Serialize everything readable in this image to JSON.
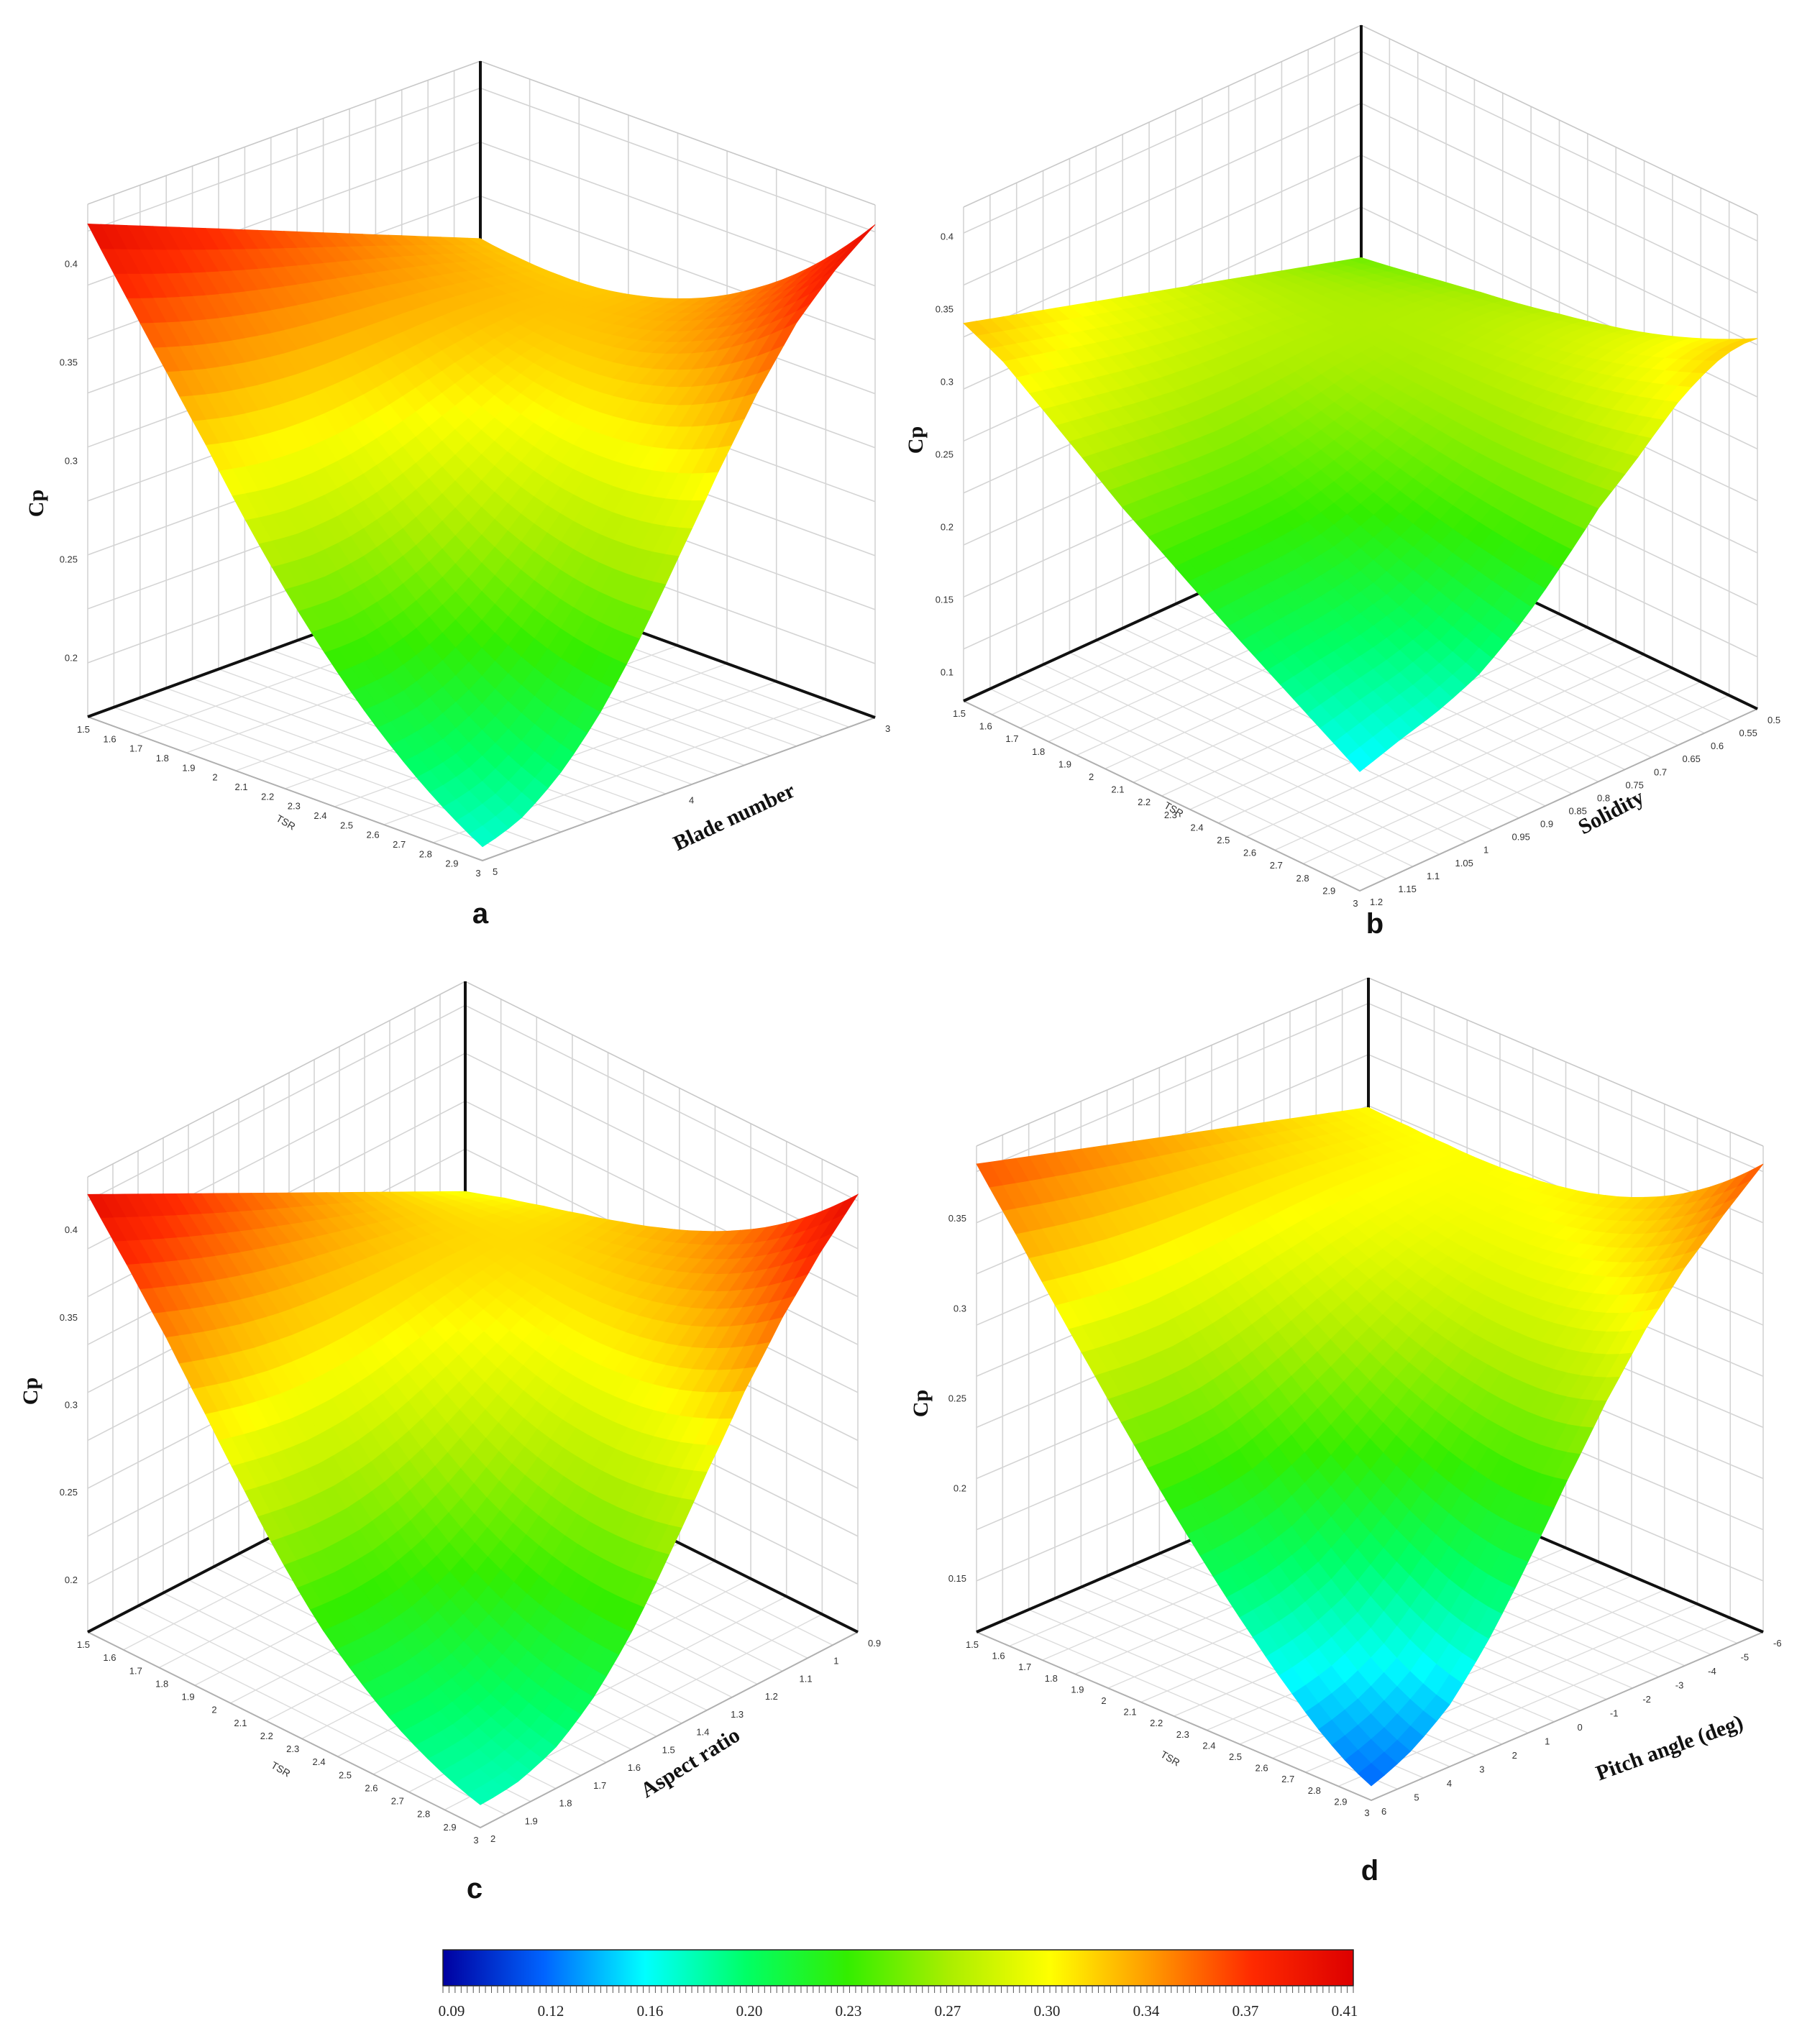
{
  "figure": {
    "colormap": [
      "#0000a0",
      "#0064ff",
      "#00ffff",
      "#00ff66",
      "#33ee00",
      "#aaee00",
      "#ffff00",
      "#ff9900",
      "#ff2a00",
      "#dd0000"
    ],
    "colorbar": {
      "ticks": [
        "0.09",
        "0.12",
        "0.16",
        "0.20",
        "0.23",
        "0.27",
        "0.30",
        "0.34",
        "0.37",
        "0.41"
      ],
      "range": [
        0.09,
        0.43
      ]
    }
  },
  "chart_data": [
    {
      "type": "surface",
      "panel_letter": "a",
      "zlabel": "Cp",
      "xlabel": "TSR",
      "ylabel": "Blade number",
      "x_ticks": [
        "1.5",
        "1.6",
        "1.7",
        "1.8",
        "1.9",
        "2",
        "2.1",
        "2.2",
        "2.3",
        "2.4",
        "2.5",
        "2.6",
        "2.7",
        "2.8",
        "2.9",
        "3"
      ],
      "y_ticks": [
        "5",
        "4",
        "3"
      ],
      "z_ticks": [
        "0.2",
        "0.25",
        "0.3",
        "0.35",
        "0.4"
      ],
      "xlim": [
        1.5,
        3
      ],
      "ylim": [
        5,
        3
      ],
      "zlim": [
        0.17,
        0.43
      ],
      "profiles": {
        "t": [
          0,
          0.1,
          0.2,
          0.3,
          0.4,
          0.5,
          0.6,
          0.7,
          0.8,
          0.9,
          1.0
        ],
        "near": [
          0.177,
          0.18,
          0.186,
          0.194,
          0.205,
          0.22,
          0.237,
          0.255,
          0.272,
          0.285,
          0.29
        ],
        "far": [
          0.198,
          0.226,
          0.258,
          0.292,
          0.326,
          0.356,
          0.381,
          0.4,
          0.413,
          0.418,
          0.42
        ],
        "back": [
          0.29,
          0.305,
          0.32,
          0.335,
          0.35,
          0.365,
          0.38,
          0.395,
          0.405,
          0.413,
          0.42
        ],
        "end": [
          0.188,
          0.205,
          0.222,
          0.24,
          0.256,
          0.272,
          0.287,
          0.301,
          0.315,
          0.328,
          0.34
        ]
      }
    },
    {
      "type": "surface",
      "panel_letter": "b",
      "zlabel": "Cp",
      "xlabel": "TSR",
      "ylabel": "Solidity",
      "x_ticks": [
        "1.5",
        "1.6",
        "1.7",
        "1.8",
        "1.9",
        "2",
        "2.1",
        "2.2",
        "2.3",
        "2.4",
        "2.5",
        "2.6",
        "2.7",
        "2.8",
        "2.9",
        "3"
      ],
      "y_ticks": [
        "1.2",
        "1.15",
        "1.1",
        "1.05",
        "1",
        "0.95",
        "0.9",
        "0.85",
        "0.8",
        "0.75",
        "0.7",
        "0.65",
        "0.6",
        "0.55",
        "0.5"
      ],
      "z_ticks": [
        "0.1",
        "0.15",
        "0.2",
        "0.25",
        "0.3",
        "0.35",
        "0.4"
      ],
      "xlim": [
        1.5,
        3
      ],
      "ylim": [
        1.2,
        0.5
      ],
      "zlim": [
        0.08,
        0.42
      ],
      "profiles": {
        "t": [
          0,
          0.1,
          0.2,
          0.3,
          0.4,
          0.5,
          0.6,
          0.7,
          0.8,
          0.9,
          1.0
        ],
        "near": [
          0.162,
          0.168,
          0.172,
          0.176,
          0.182,
          0.187,
          0.193,
          0.2,
          0.22,
          0.26,
          0.33
        ],
        "far": [
          0.192,
          0.2,
          0.21,
          0.228,
          0.258,
          0.29,
          0.318,
          0.33,
          0.34,
          0.34,
          0.335
        ],
        "back": [
          0.33,
          0.33,
          0.33,
          0.33,
          0.332,
          0.334,
          0.335,
          0.34,
          0.343,
          0.345,
          0.34
        ],
        "end": [
          0.19,
          0.2,
          0.21,
          0.22,
          0.23,
          0.238,
          0.244,
          0.25,
          0.254,
          0.257,
          0.26
        ]
      }
    },
    {
      "type": "surface",
      "panel_letter": "c",
      "zlabel": "Cp",
      "xlabel": "TSR",
      "ylabel": "Aspect ratio",
      "x_ticks": [
        "1.5",
        "1.6",
        "1.7",
        "1.8",
        "1.9",
        "2",
        "2.1",
        "2.2",
        "2.3",
        "2.4",
        "2.5",
        "2.6",
        "2.7",
        "2.8",
        "2.9",
        "3"
      ],
      "y_ticks": [
        "2",
        "1.9",
        "1.8",
        "1.7",
        "1.6",
        "1.5",
        "1.4",
        "1.3",
        "1.2",
        "1.1",
        "1",
        "0.9"
      ],
      "z_ticks": [
        "0.2",
        "0.25",
        "0.3",
        "0.35",
        "0.4"
      ],
      "xlim": [
        1.5,
        3
      ],
      "ylim": [
        2,
        0.9
      ],
      "zlim": [
        0.17,
        0.43
      ],
      "profiles": {
        "t": [
          0,
          0.1,
          0.2,
          0.3,
          0.4,
          0.5,
          0.6,
          0.7,
          0.8,
          0.9,
          1.0
        ],
        "near": [
          0.183,
          0.183,
          0.185,
          0.19,
          0.198,
          0.21,
          0.222,
          0.232,
          0.24,
          0.244,
          0.245
        ],
        "far": [
          0.19,
          0.205,
          0.228,
          0.26,
          0.295,
          0.33,
          0.362,
          0.388,
          0.405,
          0.415,
          0.42
        ],
        "back": [
          0.245,
          0.262,
          0.28,
          0.3,
          0.32,
          0.345,
          0.37,
          0.39,
          0.405,
          0.414,
          0.42
        ],
        "end": [
          0.19,
          0.205,
          0.222,
          0.24,
          0.256,
          0.27,
          0.282,
          0.292,
          0.3,
          0.306,
          0.31
        ]
      }
    },
    {
      "type": "surface",
      "panel_letter": "d",
      "zlabel": "Cp",
      "xlabel": "TSR",
      "ylabel": "Pitch angle (deg)",
      "x_ticks": [
        "1.5",
        "1.6",
        "1.7",
        "1.8",
        "1.9",
        "2",
        "2.1",
        "2.2",
        "2.3",
        "2.4",
        "2.5",
        "2.6",
        "2.7",
        "2.8",
        "2.9",
        "3"
      ],
      "y_ticks": [
        "6",
        "5",
        "4",
        "3",
        "2",
        "1",
        "0",
        "-1",
        "-2",
        "-3",
        "-4",
        "-5",
        "-6"
      ],
      "z_ticks": [
        "0.15",
        "0.2",
        "0.25",
        "0.3",
        "0.35"
      ],
      "xlim": [
        1.5,
        3
      ],
      "ylim": [
        6,
        -6
      ],
      "zlim": [
        0.12,
        0.39
      ],
      "profiles": {
        "t": [
          0,
          0.1,
          0.2,
          0.3,
          0.4,
          0.5,
          0.6,
          0.7,
          0.8,
          0.9,
          1.0
        ],
        "near": [
          0.128,
          0.132,
          0.138,
          0.15,
          0.165,
          0.182,
          0.197,
          0.21,
          0.218,
          0.222,
          0.225
        ],
        "far": [
          0.165,
          0.19,
          0.22,
          0.255,
          0.29,
          0.32,
          0.345,
          0.362,
          0.372,
          0.377,
          0.38
        ],
        "back": [
          0.225,
          0.26,
          0.29,
          0.31,
          0.325,
          0.338,
          0.35,
          0.36,
          0.368,
          0.375,
          0.38
        ],
        "end": [
          0.165,
          0.185,
          0.205,
          0.225,
          0.243,
          0.26,
          0.275,
          0.288,
          0.3,
          0.31,
          0.318
        ]
      }
    }
  ]
}
